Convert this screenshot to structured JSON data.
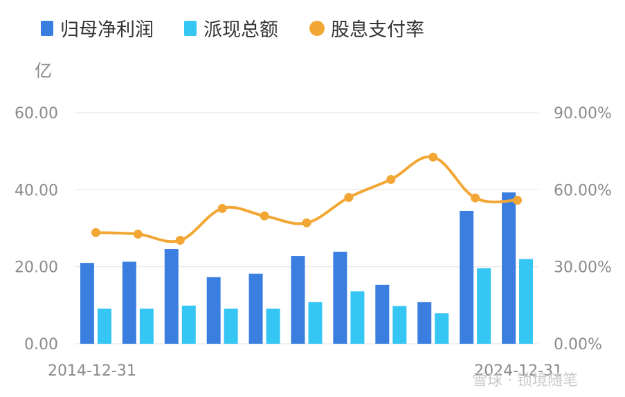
{
  "colors": {
    "profit": "#3a7fe0",
    "dividend": "#36c6f4",
    "payout": "#f2a735",
    "grid": "#e6e6e6",
    "axis_text": "#8a8a8a"
  },
  "chart_data": {
    "type": "bar",
    "unit_label": "亿",
    "legend": [
      "归母净利润",
      "派现总额",
      "股息支付率"
    ],
    "categories": [
      "2014-12-31",
      "",
      "",
      "",
      "",
      "",
      "",
      "",
      "",
      "",
      "2024-12-31"
    ],
    "x_tick_labels": [
      "2014-12-31",
      "2024-12-31"
    ],
    "series": [
      {
        "name": "归母净利润",
        "type": "bar",
        "axis": "left",
        "values": [
          21.0,
          21.3,
          24.6,
          17.3,
          18.2,
          22.8,
          23.9,
          15.3,
          10.8,
          34.5,
          39.3
        ]
      },
      {
        "name": "派现总额",
        "type": "bar",
        "axis": "left",
        "values": [
          9.1,
          9.1,
          9.9,
          9.1,
          9.1,
          10.8,
          13.6,
          9.8,
          7.9,
          19.6,
          22.0
        ]
      },
      {
        "name": "股息支付率",
        "type": "line",
        "axis": "right",
        "values": [
          43.3,
          42.7,
          40.3,
          52.7,
          49.8,
          47.1,
          57.0,
          64.0,
          72.7,
          56.8,
          55.9
        ]
      }
    ],
    "y_left": {
      "ylim": [
        0,
        60
      ],
      "ticks": [
        "0.00",
        "20.00",
        "40.00",
        "60.00"
      ]
    },
    "y_right": {
      "ylim": [
        0,
        90
      ],
      "ticks": [
        "0.00%",
        "30.00%",
        "60.00%",
        "90.00%"
      ]
    },
    "grid": true,
    "legend_position": "top-left"
  },
  "watermark": "雪球 · 锁境随笔"
}
